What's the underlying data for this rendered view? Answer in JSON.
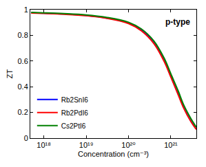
{
  "chart_data": {
    "type": "line",
    "annotations": [
      "p-type"
    ],
    "x_label": "Concentration (cm⁻³)",
    "y_label": "ZT",
    "x": [
      5e+17,
      1e+18,
      3e+18,
      1e+19,
      3e+19,
      1e+20,
      2e+20,
      4e+20,
      7e+20,
      1e+21,
      1.5e+21,
      2e+21,
      3e+21,
      4e+21
    ],
    "series": [
      {
        "name": "Rb2SnI6",
        "color": "#0000ff",
        "values": [
          0.975,
          0.972,
          0.966,
          0.955,
          0.935,
          0.895,
          0.84,
          0.74,
          0.6,
          0.48,
          0.34,
          0.24,
          0.13,
          0.07
        ]
      },
      {
        "name": "Rb2PdI6",
        "color": "#ff0000",
        "values": [
          0.973,
          0.97,
          0.964,
          0.953,
          0.933,
          0.892,
          0.836,
          0.735,
          0.595,
          0.475,
          0.335,
          0.235,
          0.127,
          0.068
        ]
      },
      {
        "name": "Cs2PtI6",
        "color": "#008000",
        "values": [
          0.978,
          0.975,
          0.969,
          0.959,
          0.94,
          0.902,
          0.85,
          0.755,
          0.62,
          0.5,
          0.365,
          0.26,
          0.15,
          0.085
        ]
      }
    ],
    "log": "x",
    "xlim": [
      4.8e+17,
      4e+21
    ],
    "xticks": [
      {
        "value": 1e+18,
        "label": "10¹⁸"
      },
      {
        "value": 1e+19,
        "label": "10¹⁹"
      },
      {
        "value": 1e+20,
        "label": "10²⁰"
      },
      {
        "value": 1e+21,
        "label": "10²¹"
      }
    ],
    "ylim": [
      0,
      1
    ],
    "yticks": [
      0,
      0.2,
      0.4,
      0.6,
      0.8,
      1
    ],
    "grid": false,
    "legend": "lower left"
  }
}
